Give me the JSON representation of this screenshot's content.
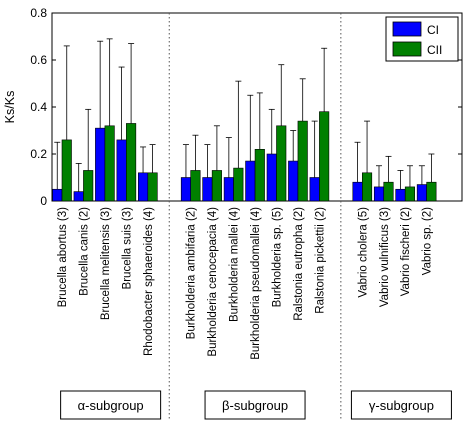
{
  "chart_data": {
    "type": "bar",
    "ylabel": "Ks/Ks",
    "ylim": [
      0,
      0.8
    ],
    "yticks": [
      "0",
      "0.2",
      "0.4",
      "0.6",
      "0.8"
    ],
    "legend_position": "top-right",
    "colors": {
      "CI": "#0000ff",
      "CII": "#008000"
    },
    "series": [
      {
        "name": "CI"
      },
      {
        "name": "CII"
      }
    ],
    "categories": [
      "Brucella abortus (3)",
      "Brucella canis (2)",
      "Brucella melitensis (3)",
      "Brucella suis (3)",
      "Rhodobacter sphaeroides (4)",
      "Burkholderia ambifaria (2)",
      "Burkholderia cenocepacia (4)",
      "Burkholderia mallei (4)",
      "Burkholderia pseudomallei (4)",
      "Burkholderia sp. (5)",
      "Ralstonia eutropha (2)",
      "Ralstonia pickettii (2)",
      "Vabrio cholera (5)",
      "Vabrio vulnificus (3)",
      "Vabrio fischeri (2)",
      "Vabrio sp. (2)"
    ],
    "groups": [
      {
        "label": "α-subgroup",
        "count": 5
      },
      {
        "label": "β-subgroup",
        "count": 7
      },
      {
        "label": "γ-subgroup",
        "count": 4
      }
    ],
    "ci": {
      "values": [
        0.05,
        0.04,
        0.31,
        0.26,
        0.12,
        0.1,
        0.1,
        0.1,
        0.17,
        0.2,
        0.17,
        0.1,
        0.08,
        0.06,
        0.05,
        0.07
      ],
      "err": [
        0.2,
        0.12,
        0.37,
        0.31,
        0.11,
        0.14,
        0.14,
        0.17,
        0.28,
        0.19,
        0.13,
        0.24,
        0.17,
        0.09,
        0.08,
        0.08
      ]
    },
    "cii": {
      "values": [
        0.26,
        0.13,
        0.32,
        0.33,
        0.12,
        0.13,
        0.13,
        0.14,
        0.22,
        0.32,
        0.34,
        0.38,
        0.12,
        0.08,
        0.06,
        0.08
      ],
      "err": [
        0.4,
        0.26,
        0.37,
        0.34,
        0.12,
        0.15,
        0.19,
        0.37,
        0.24,
        0.26,
        0.18,
        0.27,
        0.22,
        0.11,
        0.09,
        0.12
      ]
    }
  }
}
